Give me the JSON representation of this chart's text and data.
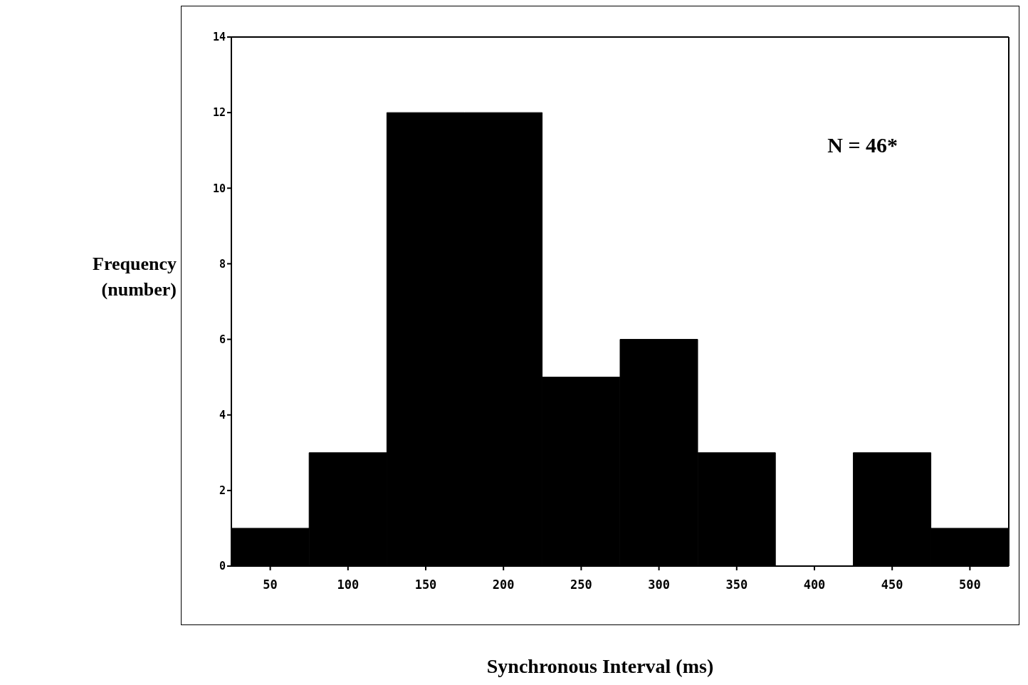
{
  "chart_data": {
    "type": "bar",
    "xlabel": "Synchronous Interval (ms)",
    "ylabel": "Frequency\n(number)",
    "categories": [
      "50",
      "100",
      "150",
      "200",
      "250",
      "300",
      "350",
      "400",
      "450",
      "500"
    ],
    "values": [
      1,
      3,
      12,
      12,
      5,
      6,
      3,
      0,
      3,
      1
    ],
    "color": "#000000",
    "ylim": [
      0,
      14
    ],
    "yticks": [
      0,
      2,
      4,
      6,
      8,
      10,
      12,
      14
    ],
    "annotations": [
      "N = 46*"
    ]
  }
}
